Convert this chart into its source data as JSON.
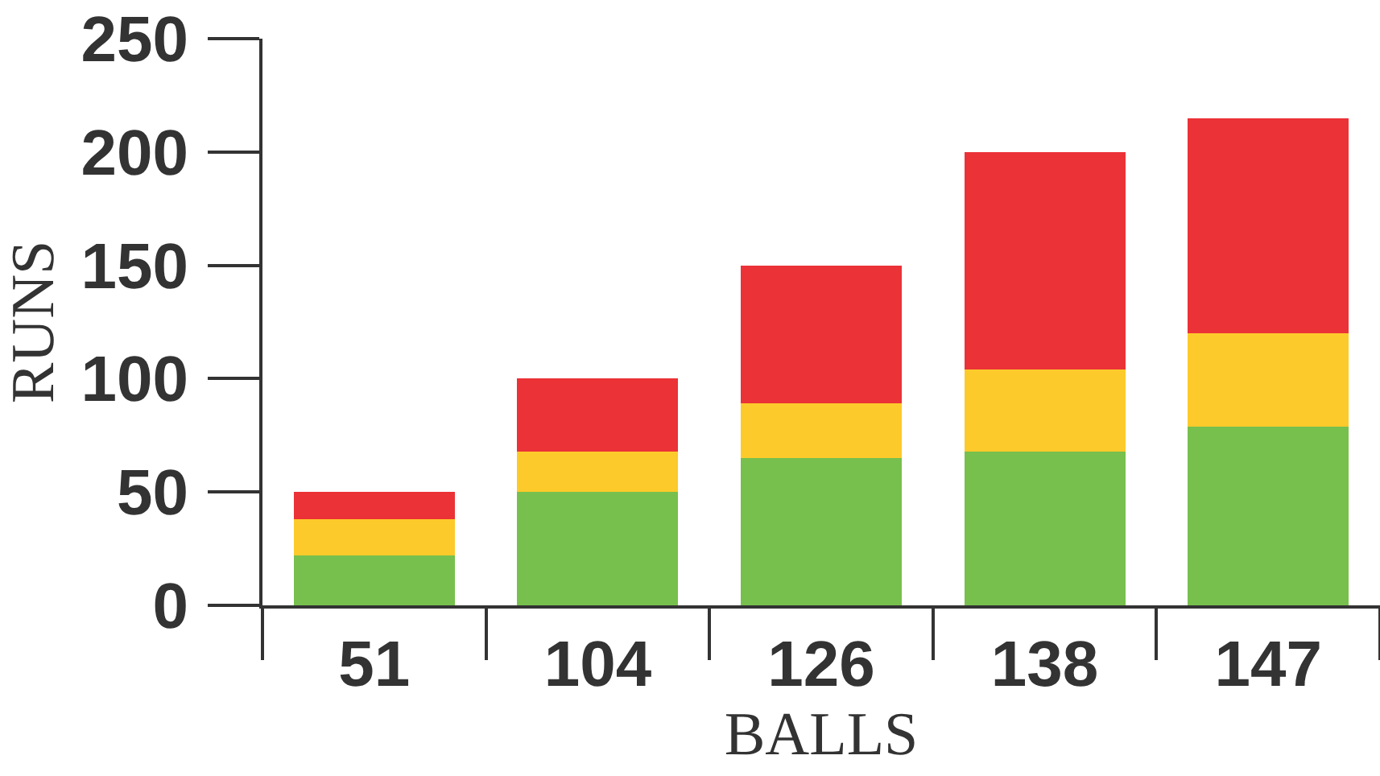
{
  "chart_data": {
    "type": "bar",
    "stacked": true,
    "xlabel": "BALLS",
    "ylabel": "RUNS",
    "categories": [
      "51",
      "104",
      "126",
      "138",
      "147"
    ],
    "series": [
      {
        "color": "#77c04d",
        "values": [
          22,
          50,
          65,
          68,
          79
        ]
      },
      {
        "color": "#fdca2b",
        "values": [
          16,
          18,
          24,
          36,
          41
        ]
      },
      {
        "color": "#eb3237",
        "values": [
          12,
          32,
          61,
          96,
          95
        ]
      }
    ],
    "ylim": [
      0,
      250
    ],
    "yticks": [
      0,
      50,
      100,
      150,
      200,
      250
    ],
    "grid": false
  }
}
